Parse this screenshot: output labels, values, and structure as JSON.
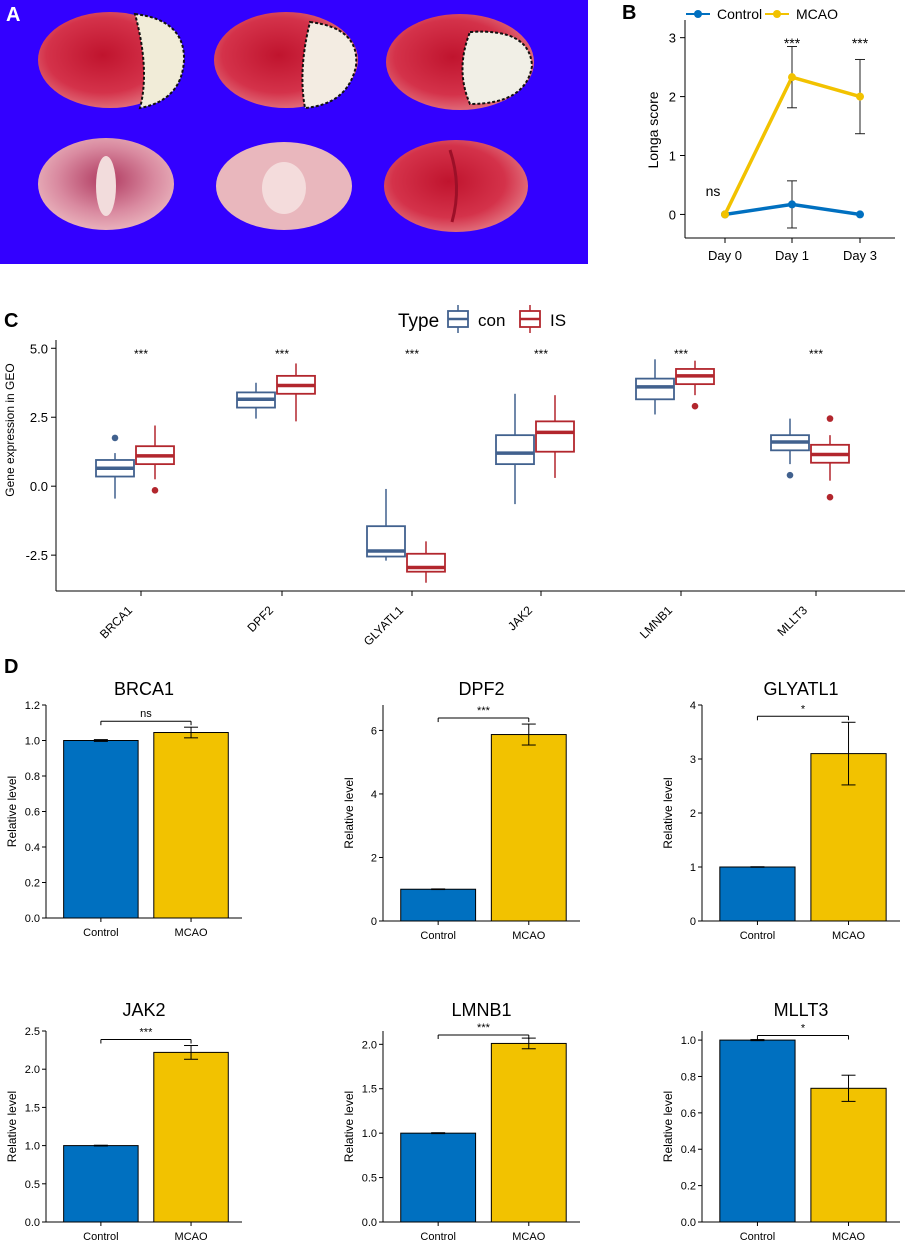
{
  "panels": {
    "a": "A",
    "b": "B",
    "c": "C",
    "d": "D"
  },
  "colors": {
    "control": "#0070c0",
    "mcao": "#f2c200",
    "con_box": "#41618e",
    "is_box": "#b2262d",
    "panel_a_bg": "#3300ff"
  },
  "chart_data": [
    {
      "id": "B",
      "type": "line",
      "title": "",
      "xlabel": "",
      "ylabel": "Longa  score",
      "categories": [
        "Day 0",
        "Day 1",
        "Day 3"
      ],
      "ylim": [
        -0.4,
        3.3
      ],
      "yticks": [
        0,
        1,
        2,
        3
      ],
      "legend": [
        "Control",
        "MCAO"
      ],
      "series": [
        {
          "name": "Control",
          "values": [
            0.0,
            0.17,
            0.0
          ],
          "err": [
            0,
            0.4,
            0
          ]
        },
        {
          "name": "MCAO",
          "values": [
            0.0,
            2.33,
            2.0
          ],
          "err": [
            0,
            0.52,
            0.63
          ]
        }
      ],
      "annotations": [
        "ns",
        "***",
        "***"
      ]
    },
    {
      "id": "C",
      "type": "box",
      "ylabel": "Gene expression in GEO",
      "legend_title": "Type",
      "legend": [
        "con",
        "IS"
      ],
      "categories": [
        "BRCA1",
        "DPF2",
        "GLYATL1",
        "JAK2",
        "LMNB1",
        "MLLT3"
      ],
      "ylim": [
        -3.8,
        5.3
      ],
      "yticks": [
        "5.0",
        "2.5",
        "0.0",
        "-2.5"
      ],
      "ytick_values": [
        5.0,
        2.5,
        0.0,
        -2.5
      ],
      "significance": [
        "***",
        "***",
        "***",
        "***",
        "***",
        "***"
      ],
      "series": [
        {
          "name": "con",
          "boxes": [
            {
              "min": -0.45,
              "q1": 0.35,
              "med": 0.65,
              "q3": 0.95,
              "max": 1.2,
              "out": [
                1.75
              ]
            },
            {
              "min": 2.45,
              "q1": 2.85,
              "med": 3.15,
              "q3": 3.4,
              "max": 3.75,
              "out": []
            },
            {
              "min": -2.7,
              "q1": -2.55,
              "med": -2.35,
              "q3": -1.45,
              "max": -0.1,
              "out": []
            },
            {
              "min": -0.65,
              "q1": 0.8,
              "med": 1.2,
              "q3": 1.85,
              "max": 3.35,
              "out": []
            },
            {
              "min": 2.6,
              "q1": 3.15,
              "med": 3.6,
              "q3": 3.9,
              "max": 4.6,
              "out": []
            },
            {
              "min": 0.8,
              "q1": 1.3,
              "med": 1.6,
              "q3": 1.85,
              "max": 2.45,
              "out": [
                0.4
              ]
            }
          ]
        },
        {
          "name": "IS",
          "boxes": [
            {
              "min": 0.25,
              "q1": 0.8,
              "med": 1.1,
              "q3": 1.45,
              "max": 2.2,
              "out": [
                -0.15
              ]
            },
            {
              "min": 2.35,
              "q1": 3.35,
              "med": 3.65,
              "q3": 4.0,
              "max": 4.45,
              "out": []
            },
            {
              "min": -3.5,
              "q1": -3.1,
              "med": -2.95,
              "q3": -2.45,
              "max": -2.0,
              "out": []
            },
            {
              "min": 0.3,
              "q1": 1.25,
              "med": 1.95,
              "q3": 2.35,
              "max": 3.3,
              "out": []
            },
            {
              "min": 3.3,
              "q1": 3.7,
              "med": 4.0,
              "q3": 4.25,
              "max": 4.55,
              "out": [
                2.9
              ]
            },
            {
              "min": 0.2,
              "q1": 0.85,
              "med": 1.15,
              "q3": 1.5,
              "max": 1.85,
              "out": [
                2.45,
                -0.4
              ]
            }
          ]
        }
      ]
    },
    {
      "id": "D1",
      "type": "bar",
      "title": "BRCA1",
      "ylabel": "Relative level",
      "categories": [
        "Control",
        "MCAO"
      ],
      "values": [
        1.0,
        1.045
      ],
      "err": [
        0.005,
        0.03
      ],
      "ylim": [
        0,
        1.2
      ],
      "yticks": [
        "0.0",
        "0.2",
        "0.4",
        "0.6",
        "0.8",
        "1.0",
        "1.2"
      ],
      "ytick_values": [
        0,
        0.2,
        0.4,
        0.6,
        0.8,
        1.0,
        1.2
      ],
      "sig": "ns"
    },
    {
      "id": "D2",
      "type": "bar",
      "title": "DPF2",
      "ylabel": "Relative level",
      "categories": [
        "Control",
        "MCAO"
      ],
      "values": [
        1.0,
        5.87
      ],
      "err": [
        0.01,
        0.33
      ],
      "ylim": [
        0,
        6.8
      ],
      "yticks": [
        "0",
        "2",
        "4",
        "6"
      ],
      "ytick_values": [
        0,
        2,
        4,
        6
      ],
      "sig": "***"
    },
    {
      "id": "D3",
      "type": "bar",
      "title": "GLYATL1",
      "ylabel": "Relative level",
      "categories": [
        "Control",
        "MCAO"
      ],
      "values": [
        1.0,
        3.1
      ],
      "err": [
        0.005,
        0.58
      ],
      "ylim": [
        0,
        4.0
      ],
      "yticks": [
        "0",
        "1",
        "2",
        "3",
        "4"
      ],
      "ytick_values": [
        0,
        1,
        2,
        3,
        4
      ],
      "sig": "*"
    },
    {
      "id": "D4",
      "type": "bar",
      "title": "JAK2",
      "ylabel": "Relative level",
      "categories": [
        "Control",
        "MCAO"
      ],
      "values": [
        1.0,
        2.22
      ],
      "err": [
        0.005,
        0.09
      ],
      "ylim": [
        0,
        2.5
      ],
      "yticks": [
        "0.0",
        "0.5",
        "1.0",
        "1.5",
        "2.0",
        "2.5"
      ],
      "ytick_values": [
        0,
        0.5,
        1.0,
        1.5,
        2.0,
        2.5
      ],
      "sig": "***"
    },
    {
      "id": "D5",
      "type": "bar",
      "title": "LMNB1",
      "ylabel": "Relative level",
      "categories": [
        "Control",
        "MCAO"
      ],
      "values": [
        1.0,
        2.01
      ],
      "err": [
        0.005,
        0.06
      ],
      "ylim": [
        0,
        2.15
      ],
      "yticks": [
        "0.0",
        "0.5",
        "1.0",
        "1.5",
        "2.0"
      ],
      "ytick_values": [
        0,
        0.5,
        1.0,
        1.5,
        2.0
      ],
      "sig": "***"
    },
    {
      "id": "D6",
      "type": "bar",
      "title": "MLLT3",
      "ylabel": "Relative level",
      "categories": [
        "Control",
        "MCAO"
      ],
      "values": [
        1.0,
        0.735
      ],
      "err": [
        0.003,
        0.072
      ],
      "ylim": [
        0,
        1.05
      ],
      "yticks": [
        "0.0",
        "0.2",
        "0.4",
        "0.6",
        "0.8",
        "1.0"
      ],
      "ytick_values": [
        0,
        0.2,
        0.4,
        0.6,
        0.8,
        1.0
      ],
      "sig": "*"
    }
  ]
}
